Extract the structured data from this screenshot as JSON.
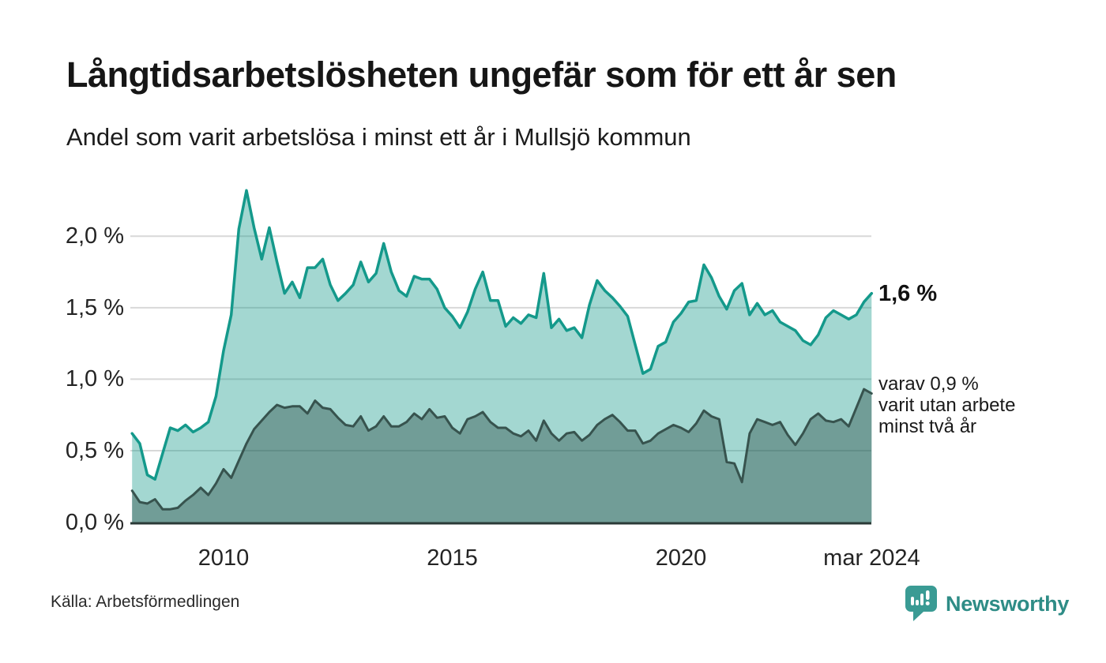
{
  "header": {
    "title": "Långtidsarbetslösheten ungefär som för ett år sen",
    "subtitle": "Andel som varit arbetslösa i minst ett år i Mullsjö kommun"
  },
  "chart_data": {
    "type": "area",
    "title": "Långtidsarbetslösheten ungefär som för ett år sen",
    "xlabel": "",
    "ylabel": "",
    "grid": true,
    "x_range": [
      2008.0,
      2024.17
    ],
    "y_range": [
      0,
      2.4
    ],
    "x_start": 2008.0,
    "x_step_years": 0.166667,
    "unit": "%",
    "y_ticks": [
      {
        "value": 0.0,
        "label": "0,0 %"
      },
      {
        "value": 0.5,
        "label": "0,5 %"
      },
      {
        "value": 1.0,
        "label": "1,0 %"
      },
      {
        "value": 1.5,
        "label": "1,5 %"
      },
      {
        "value": 2.0,
        "label": "2,0 %"
      }
    ],
    "x_ticks": [
      {
        "value": 2010,
        "label": "2010"
      },
      {
        "value": 2015,
        "label": "2015"
      },
      {
        "value": 2020,
        "label": "2020"
      },
      {
        "value": 2024.17,
        "label": "mar 2024"
      }
    ],
    "series": [
      {
        "name": "arbetslösa minst ett år",
        "line_color": "#14998B",
        "fill_color": "rgba(26,154,140,0.40)",
        "latest_label": "1,6 %",
        "values": [
          0.62,
          0.55,
          0.33,
          0.3,
          0.48,
          0.66,
          0.64,
          0.68,
          0.63,
          0.66,
          0.7,
          0.88,
          1.2,
          1.45,
          2.05,
          2.32,
          2.06,
          1.84,
          2.06,
          1.82,
          1.6,
          1.68,
          1.57,
          1.78,
          1.78,
          1.84,
          1.66,
          1.55,
          1.6,
          1.66,
          1.82,
          1.68,
          1.74,
          1.95,
          1.75,
          1.62,
          1.58,
          1.72,
          1.7,
          1.7,
          1.63,
          1.5,
          1.44,
          1.36,
          1.47,
          1.63,
          1.75,
          1.55,
          1.55,
          1.37,
          1.43,
          1.39,
          1.45,
          1.43,
          1.74,
          1.36,
          1.42,
          1.34,
          1.36,
          1.29,
          1.52,
          1.69,
          1.62,
          1.57,
          1.51,
          1.44,
          1.24,
          1.04,
          1.07,
          1.23,
          1.26,
          1.4,
          1.46,
          1.54,
          1.55,
          1.8,
          1.71,
          1.58,
          1.49,
          1.62,
          1.67,
          1.45,
          1.53,
          1.45,
          1.48,
          1.4,
          1.37,
          1.34,
          1.27,
          1.24,
          1.31,
          1.43,
          1.48,
          1.45,
          1.42,
          1.45,
          1.54,
          1.6
        ]
      },
      {
        "name": "varav utan arbete minst två år",
        "line_color": "#37534E",
        "fill_color": "rgba(32,62,58,0.38)",
        "latest_label": "0,9 %",
        "values": [
          0.22,
          0.14,
          0.13,
          0.16,
          0.09,
          0.09,
          0.1,
          0.15,
          0.19,
          0.24,
          0.19,
          0.27,
          0.37,
          0.31,
          0.43,
          0.55,
          0.65,
          0.71,
          0.77,
          0.82,
          0.8,
          0.81,
          0.81,
          0.76,
          0.85,
          0.8,
          0.79,
          0.73,
          0.68,
          0.67,
          0.74,
          0.64,
          0.67,
          0.74,
          0.67,
          0.67,
          0.7,
          0.76,
          0.72,
          0.79,
          0.73,
          0.74,
          0.66,
          0.62,
          0.72,
          0.74,
          0.77,
          0.7,
          0.66,
          0.66,
          0.62,
          0.6,
          0.64,
          0.57,
          0.71,
          0.62,
          0.57,
          0.62,
          0.63,
          0.57,
          0.61,
          0.68,
          0.72,
          0.75,
          0.7,
          0.64,
          0.64,
          0.55,
          0.57,
          0.62,
          0.65,
          0.68,
          0.66,
          0.63,
          0.69,
          0.78,
          0.74,
          0.72,
          0.42,
          0.41,
          0.28,
          0.62,
          0.72,
          0.7,
          0.68,
          0.7,
          0.61,
          0.54,
          0.62,
          0.72,
          0.76,
          0.71,
          0.7,
          0.72,
          0.67,
          0.8,
          0.93,
          0.9
        ]
      }
    ]
  },
  "annotations": {
    "latest_total": "1,6 %",
    "latest_two_years": [
      "varav 0,9 %",
      "varit utan arbete",
      "minst två år"
    ]
  },
  "footer": {
    "source": "Källa: Arbetsförmedlingen",
    "brand": "Newsworthy"
  },
  "colors": {
    "accent_teal": "#14998B",
    "dark_series": "#37534E",
    "grid": "#D8D8D8",
    "axis_line": "#2B3A37",
    "brand_teal": "#2E8C86",
    "logo_bubble": "#3A9B94"
  }
}
